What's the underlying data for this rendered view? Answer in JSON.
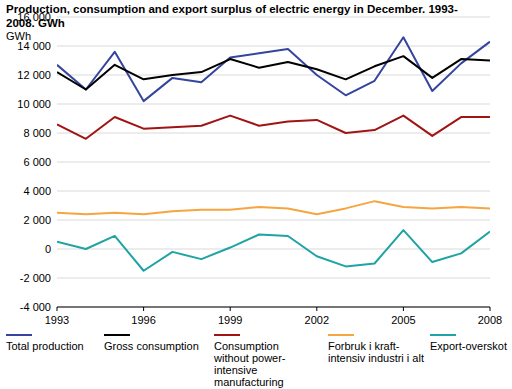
{
  "chart_data": {
    "type": "line",
    "title": "Production, consumption and export surplus of electric energy in December. 1993-2008. GWh",
    "y_label": "GWh",
    "x": [
      1993,
      1994,
      1995,
      1996,
      1997,
      1998,
      1999,
      2000,
      2001,
      2002,
      2003,
      2004,
      2005,
      2006,
      2007,
      2008
    ],
    "xlim": [
      1993,
      2008
    ],
    "xticks": [
      1993,
      1996,
      1999,
      2002,
      2005,
      2008
    ],
    "ylim": [
      -4000,
      16000
    ],
    "yticks": [
      {
        "value": -4000,
        "label": "-4 000"
      },
      {
        "value": -2000,
        "label": "-2 000"
      },
      0,
      {
        "value": 2000,
        "label": "2 000"
      },
      {
        "value": 4000,
        "label": "4 000"
      },
      {
        "value": 6000,
        "label": "6 000"
      },
      {
        "value": 8000,
        "label": "8 000"
      },
      {
        "value": 10000,
        "label": "10 000"
      },
      {
        "value": 12000,
        "label": "12 000"
      },
      {
        "value": 14000,
        "label": "14 000"
      },
      {
        "value": 16000,
        "label": "16 000"
      }
    ],
    "grid": true,
    "legend": "bottom",
    "series": [
      {
        "name": "Total production",
        "color": "#35449e",
        "values": [
          12700,
          11000,
          13600,
          10200,
          11800,
          11500,
          13200,
          13500,
          13800,
          12000,
          10600,
          11600,
          14600,
          10900,
          12800,
          14300
        ]
      },
      {
        "name": "Gross consumption",
        "color": "#000000",
        "values": [
          12200,
          11000,
          12700,
          11700,
          12000,
          12200,
          13100,
          12500,
          12900,
          12400,
          11700,
          12600,
          13300,
          11800,
          13100,
          13000
        ]
      },
      {
        "name": "Consumption without power-intensive manufacturing",
        "color": "#a11414",
        "values": [
          8600,
          7600,
          9100,
          8300,
          8400,
          8500,
          9200,
          8500,
          8800,
          8900,
          8000,
          8200,
          9200,
          7800,
          9100,
          9100
        ]
      },
      {
        "name": "Forbruk i kraft-intensiv industri i alt",
        "color": "#f6a541",
        "values": [
          2500,
          2400,
          2500,
          2400,
          2600,
          2700,
          2700,
          2900,
          2800,
          2400,
          2800,
          3300,
          2900,
          2800,
          2900,
          2800
        ]
      },
      {
        "name": "Export-overskot",
        "color": "#1fa3a3",
        "values": [
          500,
          0,
          900,
          -1500,
          -200,
          -700,
          100,
          1000,
          900,
          -500,
          -1200,
          -1000,
          1300,
          -900,
          -300,
          1200
        ]
      }
    ]
  }
}
